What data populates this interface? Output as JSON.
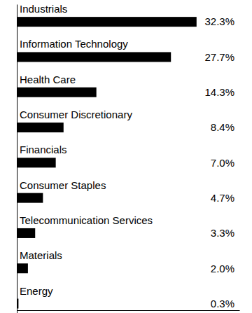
{
  "chart_data": {
    "type": "bar",
    "orientation": "horizontal",
    "categories": [
      "Industrials",
      "Information Technology",
      "Health Care",
      "Consumer Discretionary",
      "Financials",
      "Consumer Staples",
      "Telecommunication Services",
      "Materials",
      "Energy"
    ],
    "values": [
      32.3,
      27.7,
      14.3,
      8.4,
      7.0,
      4.7,
      3.3,
      2.0,
      0.3
    ],
    "value_labels": [
      "32.3%",
      "27.7%",
      "14.3%",
      "8.4%",
      "7.0%",
      "4.7%",
      "3.3%",
      "2.0%",
      "0.3%"
    ],
    "color": "#000000",
    "xlim": [
      0,
      40
    ],
    "xticks": [],
    "data_labels": true,
    "tick_labels": "y",
    "grid": false
  }
}
